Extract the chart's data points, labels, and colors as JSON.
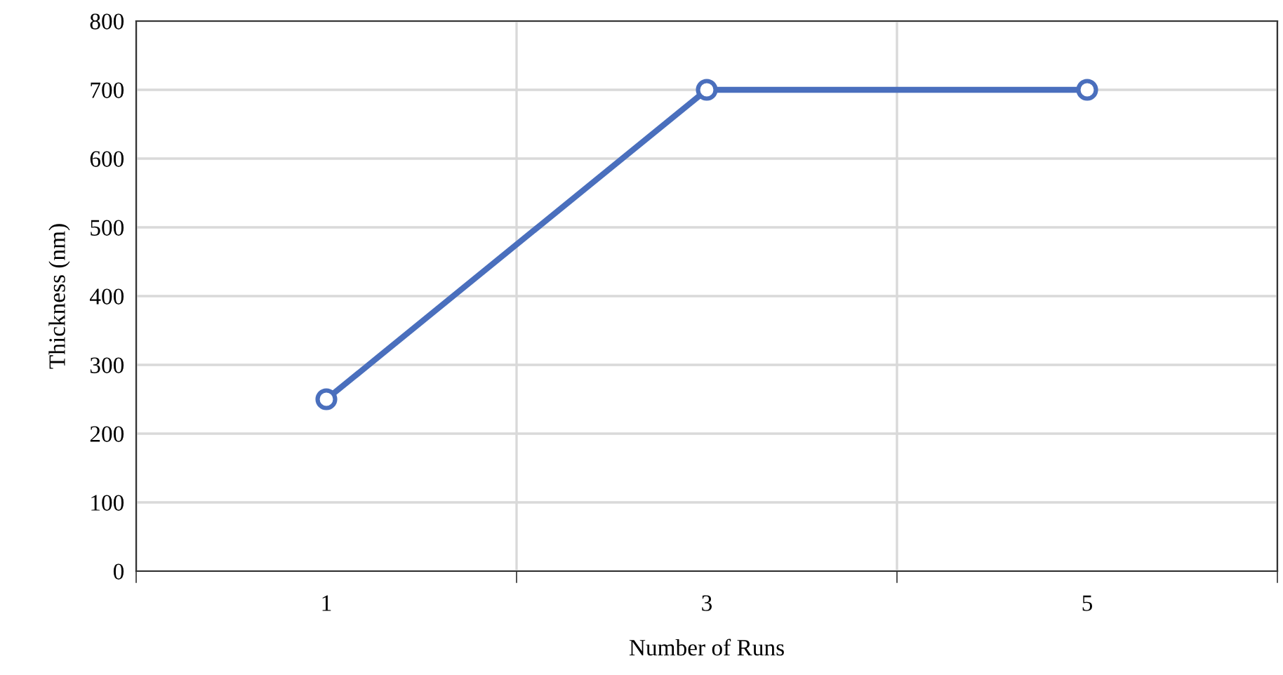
{
  "chart_data": {
    "type": "line",
    "xlabel": "Number of Runs",
    "ylabel": "Thickness (nm)",
    "categories": [
      "1",
      "3",
      "5"
    ],
    "series": [
      {
        "color": "#4a6fbd",
        "values": [
          250,
          700,
          700
        ]
      }
    ],
    "ylim": [
      0,
      800
    ],
    "yticks": [
      0,
      100,
      200,
      300,
      400,
      500,
      600,
      700,
      800
    ],
    "grid": true,
    "marker": "circle",
    "line_style": "solid"
  }
}
